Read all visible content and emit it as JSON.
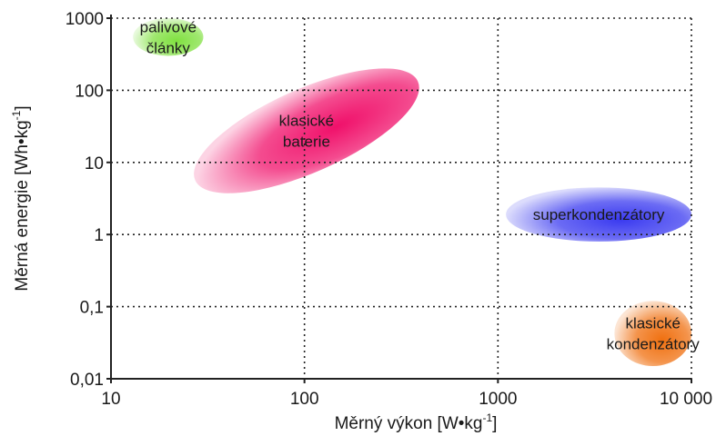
{
  "chart_data": {
    "type": "scatter",
    "xscale": "log",
    "yscale": "log",
    "xlim": [
      10,
      10000
    ],
    "ylim": [
      0.01,
      1000
    ],
    "xticks": [
      10,
      100,
      1000,
      10000
    ],
    "yticks": [
      0.01,
      0.1,
      1,
      10,
      100,
      1000
    ],
    "xtick_labels": [
      "10",
      "100",
      "1000",
      "10 000"
    ],
    "ytick_labels": [
      "0,01",
      "0,1",
      "1",
      "10",
      "100",
      "1000"
    ],
    "xlabel": "Měrný výkon [W•kg",
    "xlabel_exp": "-1",
    "xlabel_end": "]",
    "ylabel": "Měrná energie [Wh•kg",
    "ylabel_exp": "-1",
    "ylabel_end": "]",
    "grid": true,
    "regions": [
      {
        "name": "palivové články",
        "label_lines": [
          "palivové",
          "články"
        ],
        "color": "#80e040",
        "x_range": [
          13,
          30
        ],
        "y_range": [
          300,
          1000
        ]
      },
      {
        "name": "klasické baterie",
        "label_lines": [
          "klasické",
          "baterie"
        ],
        "color": "#f0106a",
        "x_range": [
          30,
          350
        ],
        "y_range": [
          3,
          250
        ]
      },
      {
        "name": "superkondenzátory",
        "label_lines": [
          "superkondenzátory"
        ],
        "color": "#3a3af0",
        "x_range": [
          1100,
          10000
        ],
        "y_range": [
          0.8,
          4.5
        ]
      },
      {
        "name": "klasické kondenzátory",
        "label_lines": [
          "klasické",
          "kondenzátory"
        ],
        "color": "#f07010",
        "x_range": [
          4000,
          10000
        ],
        "y_range": [
          0.015,
          0.12
        ]
      }
    ]
  }
}
